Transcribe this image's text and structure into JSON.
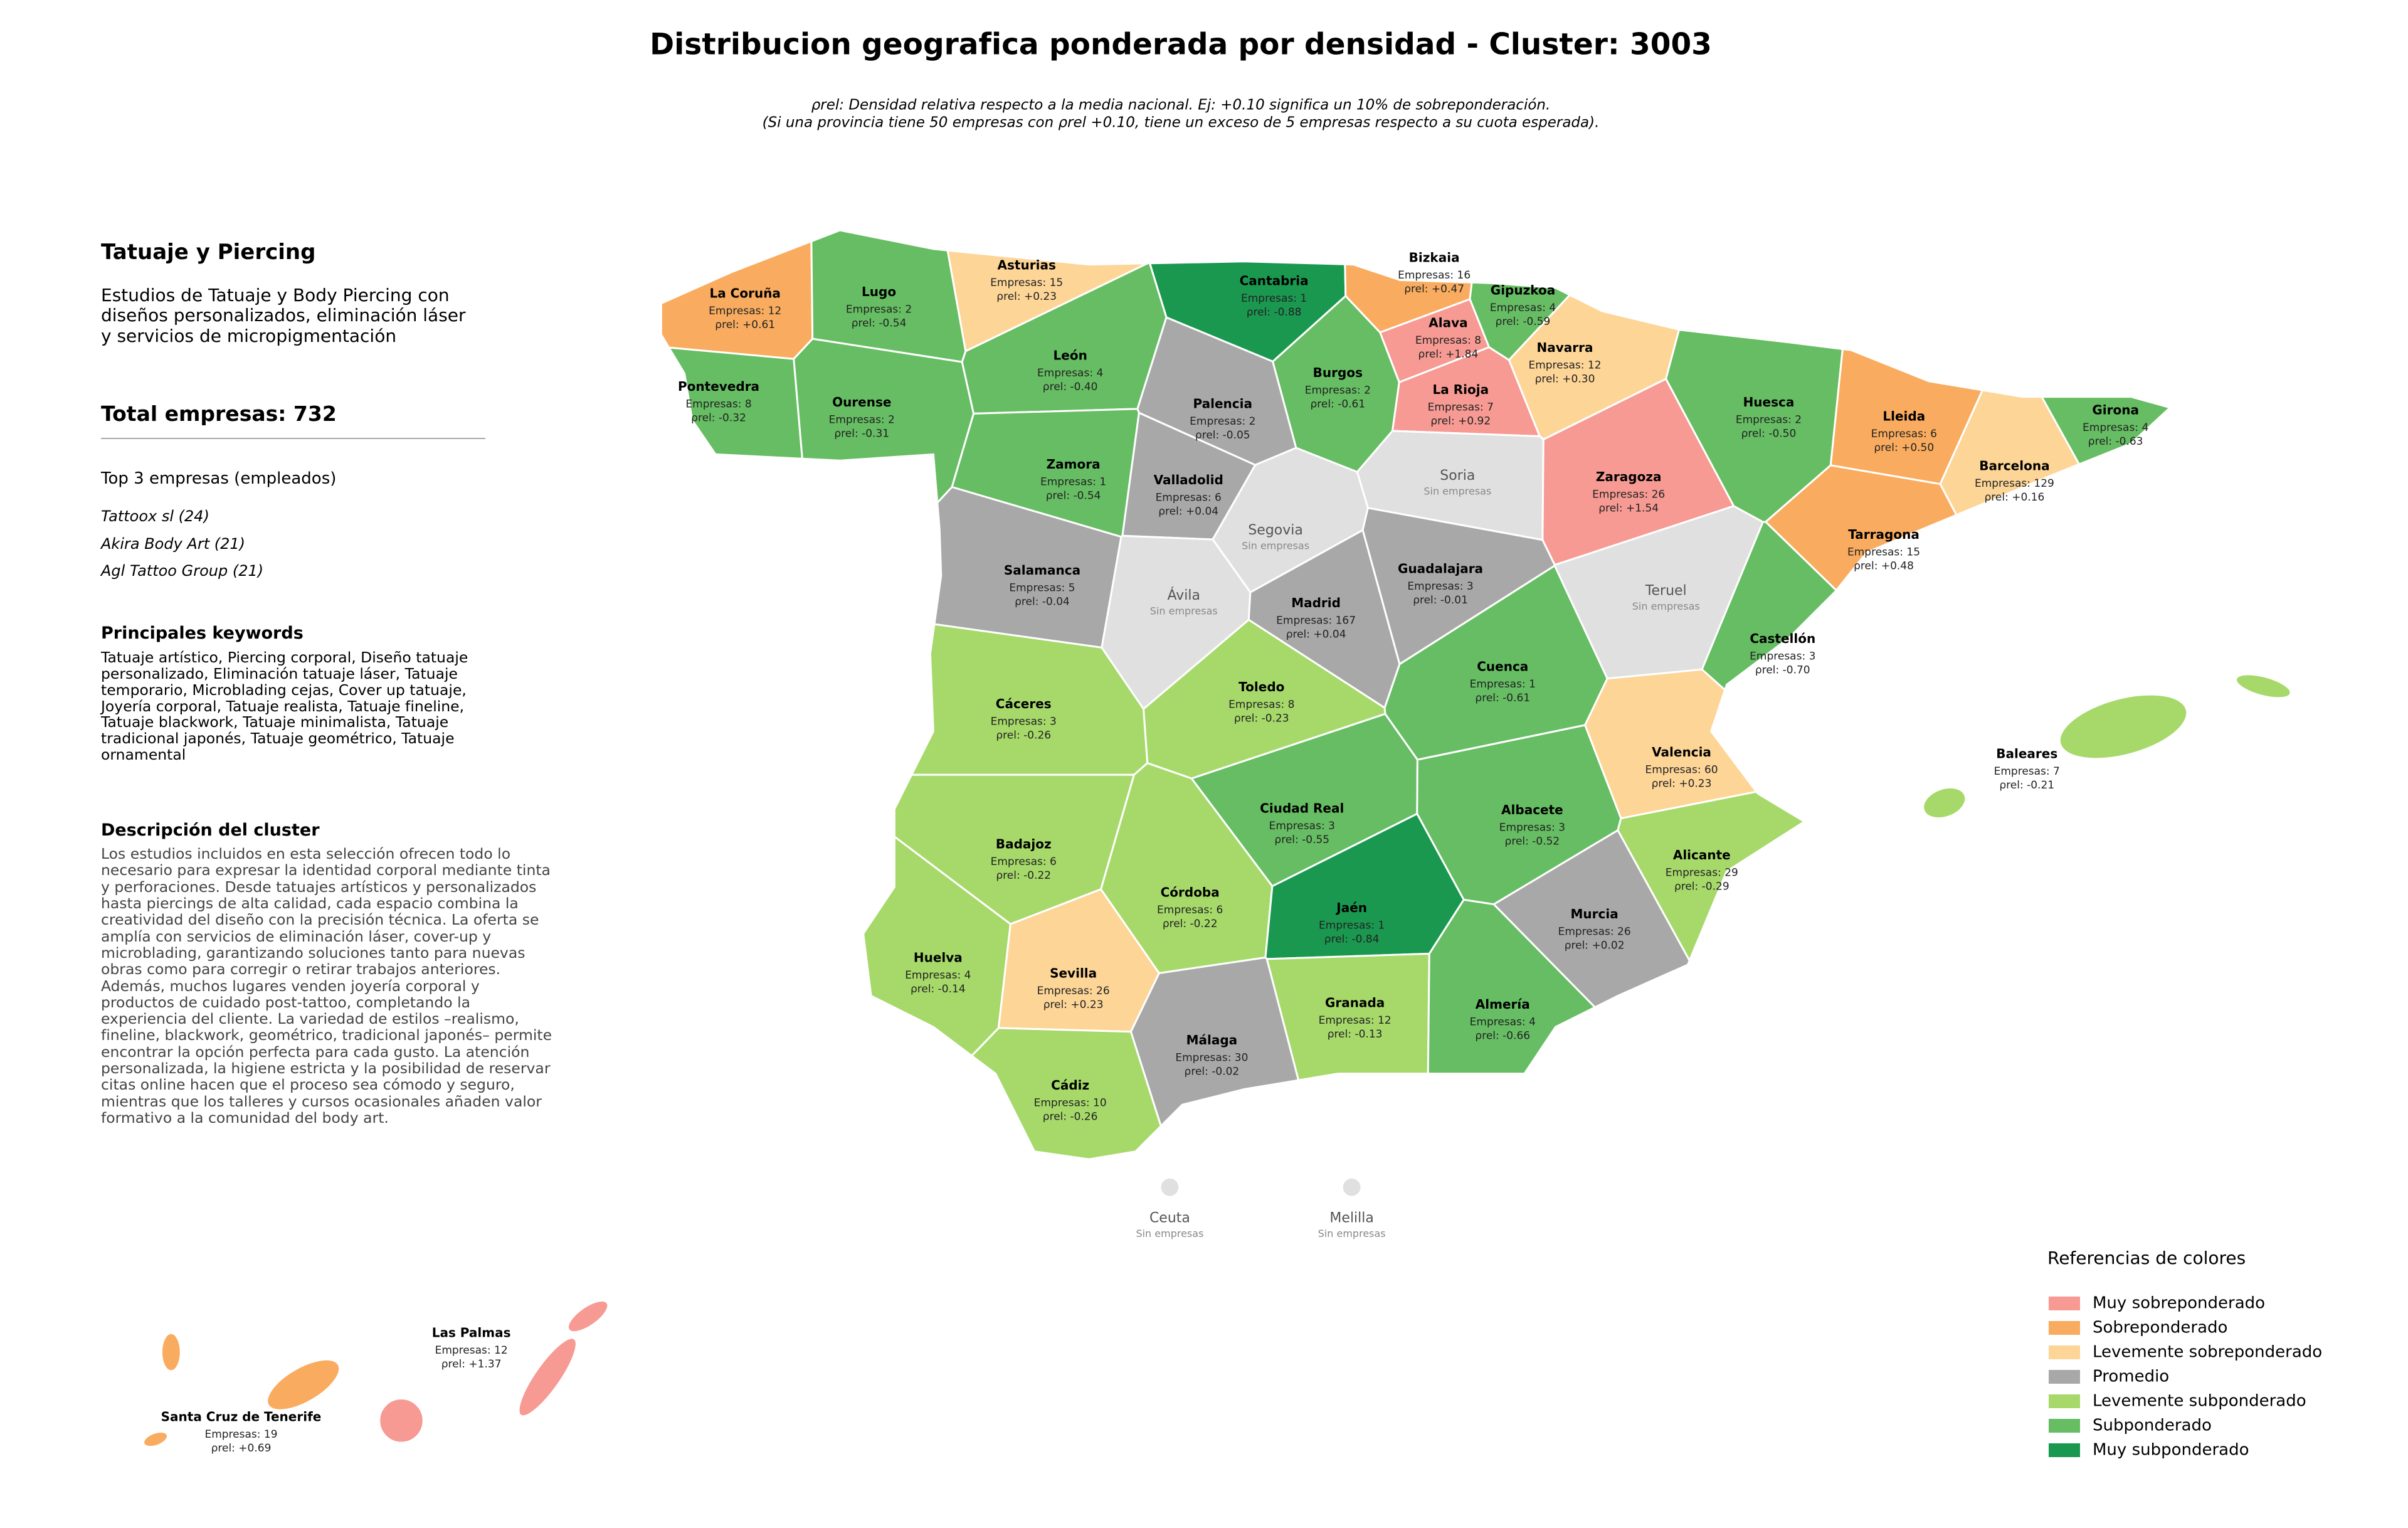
{
  "title": "Distribucion geografica ponderada por densidad - Cluster: 3003",
  "subtitle": [
    "ρrel: Densidad relativa respecto a la media nacional. Ej: +0.10 significa un 10% de sobreponderación.",
    "(Si una provincia tiene 50 empresas con ρrel +0.10, tiene un exceso de 5 empresas respecto a su cuota esperada)."
  ],
  "panel": {
    "heading": "Tatuaje y Piercing",
    "description": "Estudios de Tatuaje y Body Piercing con diseños personalizados, eliminación láser y servicios de micropigmentación",
    "total": "Total empresas: 732",
    "top_heading": "Top 3 empresas (empleados)",
    "top": [
      "Tattoox sl (24)",
      "Akira Body Art (21)",
      "Agl Tattoo Group (21)"
    ],
    "keywords_heading": "Principales keywords",
    "keywords": "Tatuaje artístico, Piercing corporal, Diseño tatuaje personalizado, Eliminación tatuaje láser, Tatuaje temporario, Microblading cejas, Cover up tatuaje, Joyería corporal, Tatuaje realista, Tatuaje fineline, Tatuaje blackwork, Tatuaje minimalista, Tatuaje tradicional japonés, Tatuaje geométrico, Tatuaje ornamental",
    "desc_heading": "Descripción del cluster",
    "desc": "Los estudios incluidos en esta selección ofrecen todo lo necesario para expresar la identidad corporal mediante tinta y perforaciones. Desde tatuajes artísticos y personalizados hasta piercings de alta calidad, cada espacio combina la creatividad del diseño con la precisión técnica. La oferta se amplía con servicios de eliminación láser, cover-up y microblading, garantizando soluciones tanto para nuevas obras como para corregir o retirar trabajos anteriores. Además, muchos lugares venden joyería corporal y productos de cuidado post-tattoo, completando la experiencia del cliente. La variedad de estilos –realismo, fineline, blackwork, geométrico, tradicional japonés– permite encontrar la opción perfecta para cada gusto. La atención personalizada, la higiene estricta y la posibilidad de reservar citas online hacen que el proceso sea cómodo y seguro, mientras que los talleres y cursos ocasionales añaden valor formativo a la comunidad del body art."
  },
  "legend": {
    "title": "Referencias de colores",
    "items": [
      {
        "label": "Muy sobreponderado",
        "color": "#f69a93"
      },
      {
        "label": "Sobreponderado",
        "color": "#f9ac5f"
      },
      {
        "label": "Levemente sobreponderado",
        "color": "#fdd597"
      },
      {
        "label": "Promedio",
        "color": "#a8a8a8"
      },
      {
        "label": "Levemente subponderado",
        "color": "#a6d96a"
      },
      {
        "label": "Subponderado",
        "color": "#66bd63"
      },
      {
        "label": "Muy subponderado",
        "color": "#1a9850"
      }
    ]
  },
  "provinces": [
    {
      "name": "La Coruña",
      "count": "Empresas: 12",
      "rho": "ρrel: +0.61",
      "color": "#f9ac5f"
    },
    {
      "name": "Lugo",
      "count": "Empresas: 2",
      "rho": "ρrel: -0.54",
      "color": "#66bd63"
    },
    {
      "name": "Asturias",
      "count": "Empresas: 15",
      "rho": "ρrel: +0.23",
      "color": "#fdd597"
    },
    {
      "name": "Cantabria",
      "count": "Empresas: 1",
      "rho": "ρrel: -0.88",
      "color": "#1a9850"
    },
    {
      "name": "Bizkaia",
      "count": "Empresas: 16",
      "rho": "ρrel: +0.47",
      "color": "#f9ac5f"
    },
    {
      "name": "Gipuzkoa",
      "count": "Empresas: 4",
      "rho": "ρrel: -0.59",
      "color": "#66bd63"
    },
    {
      "name": "Alava",
      "count": "Empresas: 8",
      "rho": "ρrel: +1.84",
      "color": "#f69a93"
    },
    {
      "name": "Navarra",
      "count": "Empresas: 12",
      "rho": "ρrel: +0.30",
      "color": "#fdd597"
    },
    {
      "name": "Pontevedra",
      "count": "Empresas: 8",
      "rho": "ρrel: -0.32",
      "color": "#66bd63"
    },
    {
      "name": "Ourense",
      "count": "Empresas: 2",
      "rho": "ρrel: -0.31",
      "color": "#66bd63"
    },
    {
      "name": "León",
      "count": "Empresas: 4",
      "rho": "ρrel: -0.40",
      "color": "#66bd63"
    },
    {
      "name": "Palencia",
      "count": "Empresas: 2",
      "rho": "ρrel: -0.05",
      "color": "#a8a8a8"
    },
    {
      "name": "Burgos",
      "count": "Empresas: 2",
      "rho": "ρrel: -0.61",
      "color": "#66bd63"
    },
    {
      "name": "La Rioja",
      "count": "Empresas: 7",
      "rho": "ρrel: +0.92",
      "color": "#f69a93"
    },
    {
      "name": "Huesca",
      "count": "Empresas: 2",
      "rho": "ρrel: -0.50",
      "color": "#66bd63"
    },
    {
      "name": "Lleida",
      "count": "Empresas: 6",
      "rho": "ρrel: +0.50",
      "color": "#f9ac5f"
    },
    {
      "name": "Girona",
      "count": "Empresas: 4",
      "rho": "ρrel: -0.63",
      "color": "#66bd63"
    },
    {
      "name": "Zamora",
      "count": "Empresas: 1",
      "rho": "ρrel: -0.54",
      "color": "#66bd63"
    },
    {
      "name": "Valladolid",
      "count": "Empresas: 6",
      "rho": "ρrel: +0.04",
      "color": "#a8a8a8"
    },
    {
      "name": "Soria",
      "count": "Sin empresas",
      "color": "#e0e0e0"
    },
    {
      "name": "Zaragoza",
      "count": "Empresas: 26",
      "rho": "ρrel: +1.54",
      "color": "#f69a93"
    },
    {
      "name": "Barcelona",
      "count": "Empresas: 129",
      "rho": "ρrel: +0.16",
      "color": "#fdd597"
    },
    {
      "name": "Segovia",
      "count": "Sin empresas",
      "color": "#e0e0e0"
    },
    {
      "name": "Tarragona",
      "count": "Empresas: 15",
      "rho": "ρrel: +0.48",
      "color": "#f9ac5f"
    },
    {
      "name": "Salamanca",
      "count": "Empresas: 5",
      "rho": "ρrel: -0.04",
      "color": "#a8a8a8"
    },
    {
      "name": "Guadalajara",
      "count": "Empresas: 3",
      "rho": "ρrel: -0.01",
      "color": "#a8a8a8"
    },
    {
      "name": "Ávila",
      "count": "Sin empresas",
      "color": "#e0e0e0"
    },
    {
      "name": "Teruel",
      "count": "Sin empresas",
      "color": "#e0e0e0"
    },
    {
      "name": "Madrid",
      "count": "Empresas: 167",
      "rho": "ρrel: +0.04",
      "color": "#a8a8a8"
    },
    {
      "name": "Castellón",
      "count": "Empresas: 3",
      "rho": "ρrel: -0.70",
      "color": "#66bd63"
    },
    {
      "name": "Cuenca",
      "count": "Empresas: 1",
      "rho": "ρrel: -0.61",
      "color": "#66bd63"
    },
    {
      "name": "Toledo",
      "count": "Empresas: 8",
      "rho": "ρrel: -0.23",
      "color": "#a6d96a"
    },
    {
      "name": "Cáceres",
      "count": "Empresas: 3",
      "rho": "ρrel: -0.26",
      "color": "#a6d96a"
    },
    {
      "name": "Valencia",
      "count": "Empresas: 60",
      "rho": "ρrel: +0.23",
      "color": "#fdd597"
    },
    {
      "name": "Baleares",
      "count": "Empresas: 7",
      "rho": "ρrel: -0.21",
      "color": "#a6d96a"
    },
    {
      "name": "Ciudad Real",
      "count": "Empresas: 3",
      "rho": "ρrel: -0.55",
      "color": "#66bd63"
    },
    {
      "name": "Albacete",
      "count": "Empresas: 3",
      "rho": "ρrel: -0.52",
      "color": "#66bd63"
    },
    {
      "name": "Badajoz",
      "count": "Empresas: 6",
      "rho": "ρrel: -0.22",
      "color": "#a6d96a"
    },
    {
      "name": "Alicante",
      "count": "Empresas: 29",
      "rho": "ρrel: -0.29",
      "color": "#a6d96a"
    },
    {
      "name": "Córdoba",
      "count": "Empresas: 6",
      "rho": "ρrel: -0.22",
      "color": "#a6d96a"
    },
    {
      "name": "Jaén",
      "count": "Empresas: 1",
      "rho": "ρrel: -0.84",
      "color": "#1a9850"
    },
    {
      "name": "Murcia",
      "count": "Empresas: 26",
      "rho": "ρrel: +0.02",
      "color": "#a8a8a8"
    },
    {
      "name": "Huelva",
      "count": "Empresas: 4",
      "rho": "ρrel: -0.14",
      "color": "#a6d96a"
    },
    {
      "name": "Sevilla",
      "count": "Empresas: 26",
      "rho": "ρrel: +0.23",
      "color": "#fdd597"
    },
    {
      "name": "Granada",
      "count": "Empresas: 12",
      "rho": "ρrel: -0.13",
      "color": "#a6d96a"
    },
    {
      "name": "Almería",
      "count": "Empresas: 4",
      "rho": "ρrel: -0.66",
      "color": "#66bd63"
    },
    {
      "name": "Málaga",
      "count": "Empresas: 30",
      "rho": "ρrel: -0.02",
      "color": "#a8a8a8"
    },
    {
      "name": "Cádiz",
      "count": "Empresas: 10",
      "rho": "ρrel: -0.26",
      "color": "#a6d96a"
    },
    {
      "name": "Ceuta",
      "count": "Sin empresas",
      "color": "#e0e0e0"
    },
    {
      "name": "Melilla",
      "count": "Sin empresas",
      "color": "#e0e0e0"
    },
    {
      "name": "Las Palmas",
      "count": "Empresas: 12",
      "rho": "ρrel: +1.37",
      "color": "#f69a93"
    },
    {
      "name": "Santa Cruz de Tenerife",
      "count": "Empresas: 19",
      "rho": "ρrel: +0.69",
      "color": "#f9ac5f"
    }
  ]
}
